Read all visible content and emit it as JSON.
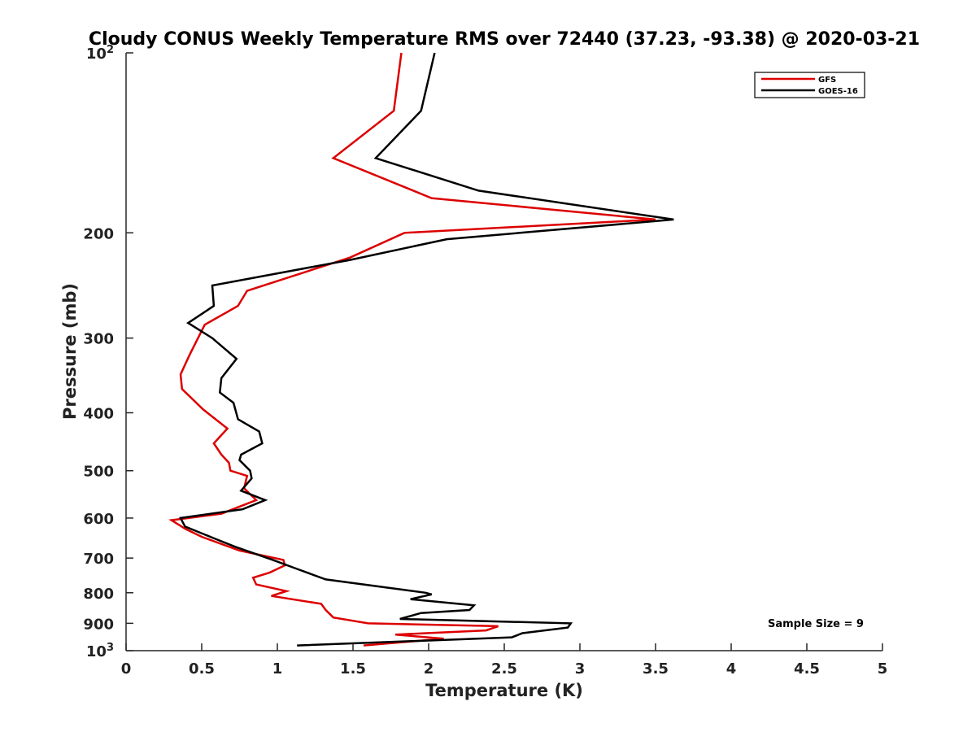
{
  "chart_data": {
    "type": "line",
    "title": "Cloudy CONUS Weekly Temperature RMS over 72440 (37.23, -93.38) @ 2020-03-21",
    "xlabel": "Temperature (K)",
    "ylabel": "Pressure (mb)",
    "xlim": [
      0,
      5
    ],
    "ylim": [
      100,
      1000
    ],
    "y_scale": "log",
    "y_reversed": true,
    "grid": false,
    "legend_position": "top-right",
    "x_ticks": [
      "0",
      "0.5",
      "1",
      "1.5",
      "2",
      "2.5",
      "3",
      "3.5",
      "4",
      "4.5",
      "5"
    ],
    "y_ticks": [
      {
        "p": 100,
        "base": "10",
        "exp": "2"
      },
      {
        "p": 200,
        "base": "200",
        "exp": ""
      },
      {
        "p": 300,
        "base": "300",
        "exp": ""
      },
      {
        "p": 400,
        "base": "400",
        "exp": ""
      },
      {
        "p": 500,
        "base": "500",
        "exp": ""
      },
      {
        "p": 600,
        "base": "600",
        "exp": ""
      },
      {
        "p": 700,
        "base": "700",
        "exp": ""
      },
      {
        "p": 800,
        "base": "800",
        "exp": ""
      },
      {
        "p": 900,
        "base": "900",
        "exp": ""
      },
      {
        "p": 1000,
        "base": "10",
        "exp": "3"
      }
    ],
    "annotation": "Sample Size = 9",
    "series": [
      {
        "name": "GFS",
        "color": "#dd0000",
        "points": [
          [
            1.82,
            100
          ],
          [
            1.77,
            125
          ],
          [
            1.37,
            150
          ],
          [
            2.02,
            175
          ],
          [
            3.5,
            190
          ],
          [
            1.84,
            200
          ],
          [
            1.48,
            220
          ],
          [
            0.8,
            250
          ],
          [
            0.74,
            265
          ],
          [
            0.52,
            285
          ],
          [
            0.42,
            320
          ],
          [
            0.36,
            345
          ],
          [
            0.37,
            365
          ],
          [
            0.51,
            395
          ],
          [
            0.67,
            425
          ],
          [
            0.58,
            450
          ],
          [
            0.63,
            470
          ],
          [
            0.68,
            485
          ],
          [
            0.69,
            500
          ],
          [
            0.8,
            510
          ],
          [
            0.78,
            535
          ],
          [
            0.86,
            560
          ],
          [
            0.63,
            590
          ],
          [
            0.3,
            605
          ],
          [
            0.39,
            625
          ],
          [
            0.5,
            645
          ],
          [
            0.75,
            680
          ],
          [
            1.04,
            705
          ],
          [
            1.05,
            720
          ],
          [
            0.95,
            740
          ],
          [
            0.84,
            755
          ],
          [
            0.86,
            775
          ],
          [
            1.06,
            795
          ],
          [
            0.96,
            810
          ],
          [
            1.29,
            835
          ],
          [
            1.32,
            855
          ],
          [
            1.37,
            880
          ],
          [
            1.6,
            900
          ],
          [
            2.46,
            910
          ],
          [
            2.38,
            925
          ],
          [
            1.78,
            940
          ],
          [
            2.1,
            955
          ],
          [
            1.57,
            980
          ]
        ]
      },
      {
        "name": "GOES-16",
        "color": "#000000",
        "points": [
          [
            2.04,
            100
          ],
          [
            1.95,
            125
          ],
          [
            1.65,
            150
          ],
          [
            2.33,
            170
          ],
          [
            3.62,
            190
          ],
          [
            2.12,
            205
          ],
          [
            1.48,
            222
          ],
          [
            0.57,
            245
          ],
          [
            0.58,
            265
          ],
          [
            0.41,
            283
          ],
          [
            0.57,
            300
          ],
          [
            0.73,
            325
          ],
          [
            0.63,
            350
          ],
          [
            0.62,
            370
          ],
          [
            0.71,
            385
          ],
          [
            0.74,
            410
          ],
          [
            0.88,
            430
          ],
          [
            0.9,
            450
          ],
          [
            0.76,
            470
          ],
          [
            0.75,
            480
          ],
          [
            0.82,
            500
          ],
          [
            0.83,
            515
          ],
          [
            0.76,
            540
          ],
          [
            0.92,
            560
          ],
          [
            0.77,
            580
          ],
          [
            0.36,
            600
          ],
          [
            0.39,
            620
          ],
          [
            0.59,
            650
          ],
          [
            0.72,
            670
          ],
          [
            0.97,
            705
          ],
          [
            1.13,
            730
          ],
          [
            1.32,
            760
          ],
          [
            1.98,
            800
          ],
          [
            2.02,
            805
          ],
          [
            1.88,
            820
          ],
          [
            2.3,
            840
          ],
          [
            2.27,
            855
          ],
          [
            1.95,
            865
          ],
          [
            1.81,
            885
          ],
          [
            2.94,
            900
          ],
          [
            2.92,
            915
          ],
          [
            2.62,
            935
          ],
          [
            2.55,
            950
          ],
          [
            1.13,
            980
          ]
        ]
      }
    ]
  }
}
